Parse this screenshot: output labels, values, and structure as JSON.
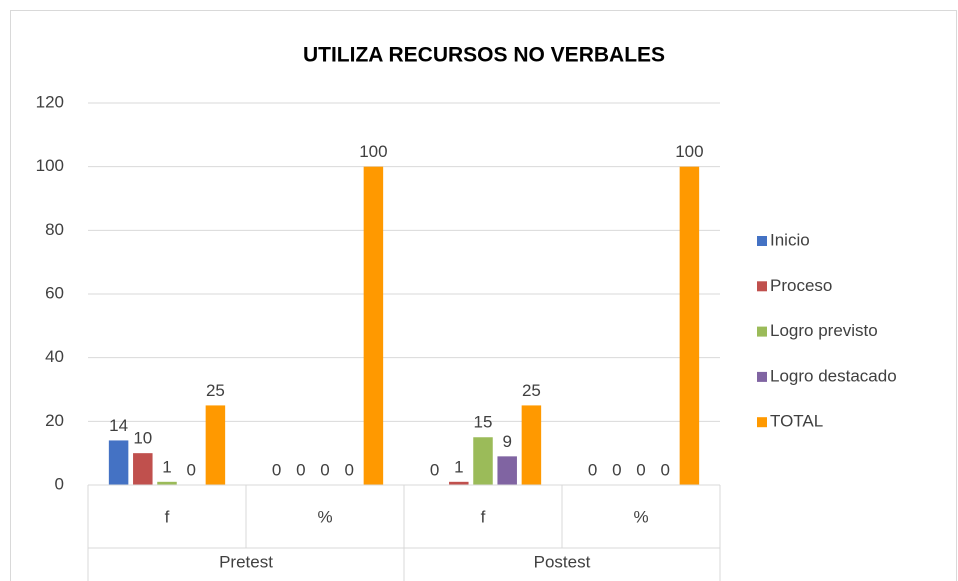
{
  "chart_data": {
    "type": "bar",
    "title": "UTILIZA RECURSOS NO VERBALES",
    "categories": [
      "f",
      "%",
      "f",
      "%"
    ],
    "groups": [
      "Pretest",
      "Postest"
    ],
    "series": [
      {
        "name": "Inicio",
        "color": "#4472c4",
        "values": [
          14,
          0,
          0,
          0
        ]
      },
      {
        "name": "Proceso",
        "color": "#c0504d",
        "values": [
          10,
          0,
          1,
          0
        ]
      },
      {
        "name": "Logro previsto",
        "color": "#9bbb59",
        "values": [
          1,
          0,
          15,
          0
        ]
      },
      {
        "name": "Logro destacado",
        "color": "#8064a2",
        "values": [
          0,
          0,
          9,
          0
        ]
      },
      {
        "name": "TOTAL",
        "color": "#ff9900",
        "values": [
          25,
          100,
          25,
          100
        ]
      }
    ],
    "ylim": [
      0,
      120
    ],
    "yticks": [
      0,
      20,
      40,
      60,
      80,
      100,
      120
    ],
    "grid": true,
    "legend": "right"
  }
}
